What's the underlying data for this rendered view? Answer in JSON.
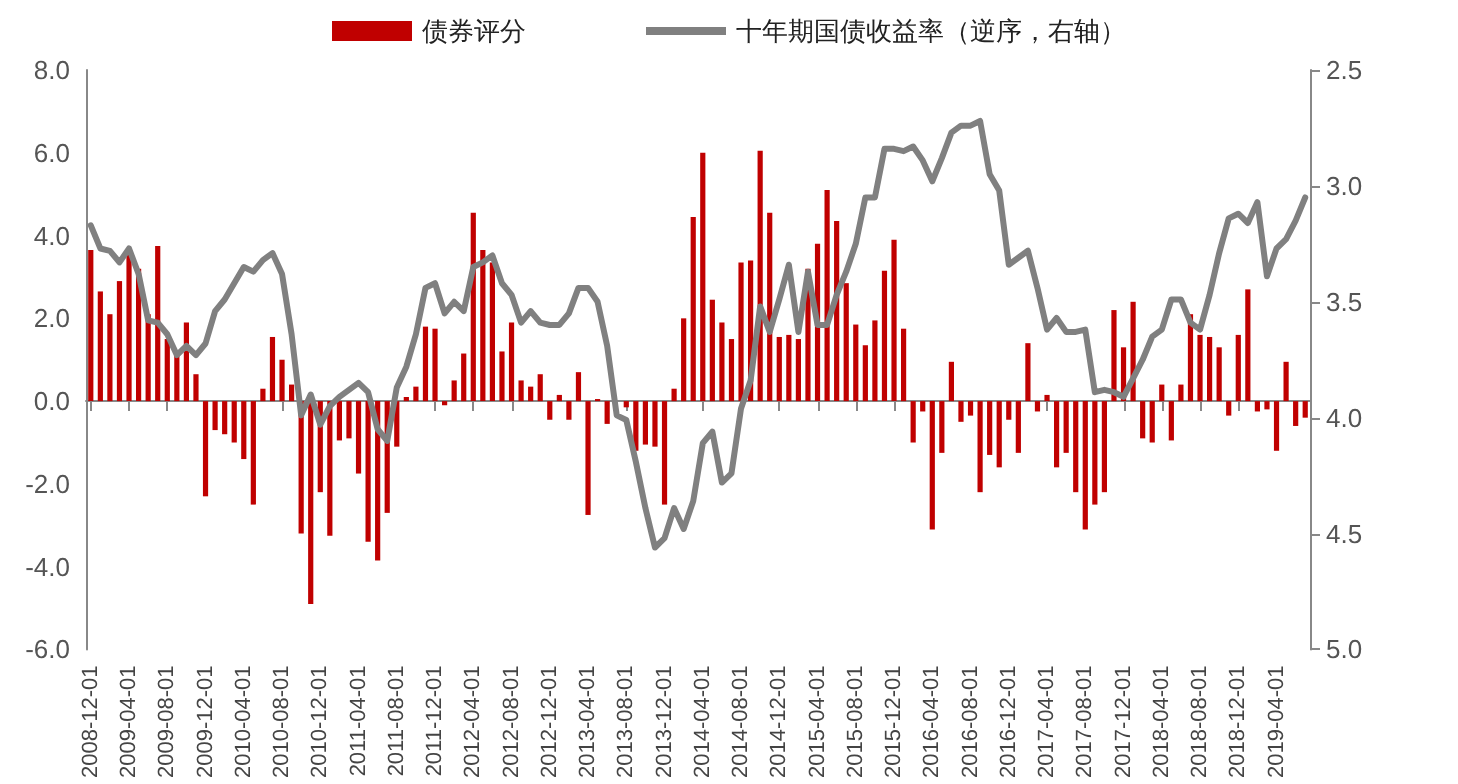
{
  "chart_data": {
    "type": "bar",
    "categories": [
      "2008-12-01",
      null,
      null,
      null,
      "2009-04-01",
      null,
      null,
      null,
      "2009-08-01",
      null,
      null,
      null,
      "2009-12-01",
      null,
      null,
      null,
      "2010-04-01",
      null,
      null,
      null,
      "2010-08-01",
      null,
      null,
      null,
      "2010-12-01",
      null,
      null,
      null,
      "2011-04-01",
      null,
      null,
      null,
      "2011-08-01",
      null,
      null,
      null,
      "2011-12-01",
      null,
      null,
      null,
      "2012-04-01",
      null,
      null,
      null,
      "2012-08-01",
      null,
      null,
      null,
      "2012-12-01",
      null,
      null,
      null,
      "2013-04-01",
      null,
      null,
      null,
      "2013-08-01",
      null,
      null,
      null,
      "2013-12-01",
      null,
      null,
      null,
      "2014-04-01",
      null,
      null,
      null,
      "2014-08-01",
      null,
      null,
      null,
      "2014-12-01",
      null,
      null,
      null,
      "2015-04-01",
      null,
      null,
      null,
      "2015-08-01",
      null,
      null,
      null,
      "2015-12-01",
      null,
      null,
      null,
      "2016-04-01",
      null,
      null,
      null,
      "2016-08-01",
      null,
      null,
      null,
      "2016-12-01",
      null,
      null,
      null,
      "2017-04-01",
      null,
      null,
      null,
      "2017-08-01",
      null,
      null,
      null,
      "2017-12-01",
      null,
      null,
      null,
      "2018-04-01",
      null,
      null,
      null,
      "2018-08-01",
      null,
      null,
      null,
      "2018-12-01",
      null,
      null,
      null,
      "2019-04-01",
      null,
      null,
      null
    ],
    "series": [
      {
        "name": "债券评分",
        "color": "#c00000",
        "values": [
          3.65,
          2.65,
          2.1,
          2.9,
          3.55,
          3.2,
          2.1,
          3.75,
          1.5,
          1.15,
          1.9,
          0.65,
          -2.3,
          -0.7,
          -0.8,
          -1.0,
          -1.4,
          -2.5,
          0.3,
          1.55,
          1.0,
          0.4,
          -3.2,
          -4.9,
          -2.2,
          -3.25,
          -0.95,
          -0.9,
          -1.75,
          -3.4,
          -3.85,
          -2.7,
          -1.1,
          0.1,
          0.35,
          1.8,
          1.75,
          -0.1,
          0.5,
          1.15,
          4.55,
          3.65,
          3.35,
          1.2,
          1.9,
          0.5,
          0.35,
          0.65,
          -0.45,
          0.15,
          -0.45,
          0.7,
          -2.75,
          0.05,
          -0.55,
          null,
          -0.15,
          -1.2,
          -1.05,
          -1.1,
          -2.5,
          0.3,
          2.0,
          4.45,
          6.0,
          2.45,
          1.9,
          1.5,
          3.35,
          3.4,
          6.05,
          4.55,
          1.55,
          1.6,
          1.5,
          3.2,
          3.8,
          5.1,
          4.35,
          2.85,
          1.85,
          1.35,
          1.95,
          3.15,
          3.9,
          1.75,
          -1.0,
          -0.25,
          -3.1,
          -1.25,
          0.95,
          -0.5,
          -0.35,
          -2.2,
          -1.3,
          -1.6,
          -0.45,
          -1.25,
          1.4,
          -0.25,
          0.15,
          -1.6,
          -1.25,
          -2.2,
          -3.1,
          -2.5,
          -2.2,
          2.2,
          1.3,
          2.4,
          -0.9,
          -1.0,
          0.4,
          -0.95,
          0.4,
          2.1,
          1.6,
          1.55,
          1.3,
          -0.35,
          1.6,
          2.7,
          -0.25,
          -0.2,
          -1.2,
          0.95,
          -0.6,
          -0.4
        ]
      },
      {
        "name": "十年期国债收益率（逆序，右轴）",
        "type": "line",
        "axis": "y2",
        "color": "#808080",
        "values": [
          3.17,
          3.27,
          3.28,
          3.33,
          3.27,
          3.38,
          3.58,
          3.59,
          3.64,
          3.73,
          3.69,
          3.73,
          3.68,
          3.54,
          3.49,
          3.42,
          3.35,
          3.37,
          3.32,
          3.29,
          3.38,
          3.64,
          3.99,
          3.9,
          4.03,
          3.95,
          3.91,
          3.88,
          3.85,
          3.89,
          4.05,
          4.1,
          3.87,
          3.78,
          3.64,
          3.44,
          3.42,
          3.55,
          3.5,
          3.54,
          3.35,
          3.33,
          3.3,
          3.42,
          3.47,
          3.59,
          3.54,
          3.59,
          3.6,
          3.6,
          3.55,
          3.44,
          3.44,
          3.5,
          3.69,
          3.99,
          4.01,
          4.19,
          4.39,
          4.56,
          4.52,
          4.39,
          4.48,
          4.36,
          4.11,
          4.06,
          4.28,
          4.24,
          3.96,
          3.84,
          3.52,
          3.63,
          3.49,
          3.34,
          3.63,
          3.37,
          3.6,
          3.6,
          3.47,
          3.37,
          3.25,
          3.05,
          3.05,
          2.84,
          2.84,
          2.85,
          2.83,
          2.89,
          2.98,
          2.88,
          2.77,
          2.74,
          2.74,
          2.72,
          2.95,
          3.02,
          3.34,
          3.31,
          3.28,
          3.44,
          3.62,
          3.57,
          3.63,
          3.63,
          3.62,
          3.89,
          3.88,
          3.89,
          3.91,
          3.83,
          3.75,
          3.65,
          3.62,
          3.49,
          3.49,
          3.59,
          3.62,
          3.47,
          3.29,
          3.14,
          3.12,
          3.16,
          3.07,
          3.39,
          3.27,
          3.23,
          3.15,
          3.05
        ]
      }
    ],
    "ylim": [
      -6,
      8
    ],
    "yticks": [
      {
        "value": -6,
        "label": "-6.0"
      },
      {
        "value": -4,
        "label": "-4.0"
      },
      {
        "value": -2,
        "label": "-2.0"
      },
      {
        "value": 0,
        "label": "0.0"
      },
      {
        "value": 2,
        "label": "2.0"
      },
      {
        "value": 4,
        "label": "4.0"
      },
      {
        "value": 6,
        "label": "6.0"
      },
      {
        "value": 8,
        "label": "8.0"
      }
    ],
    "y2lim": [
      5.0,
      2.5
    ],
    "y2ticks": [
      2.5,
      {
        "value": 3,
        "label": "3.0"
      },
      3.5,
      {
        "value": 4,
        "label": "4.0"
      },
      4.5,
      {
        "value": 5,
        "label": "5.0"
      }
    ],
    "legend": "top",
    "marker": "none",
    "line_style": "solid"
  }
}
